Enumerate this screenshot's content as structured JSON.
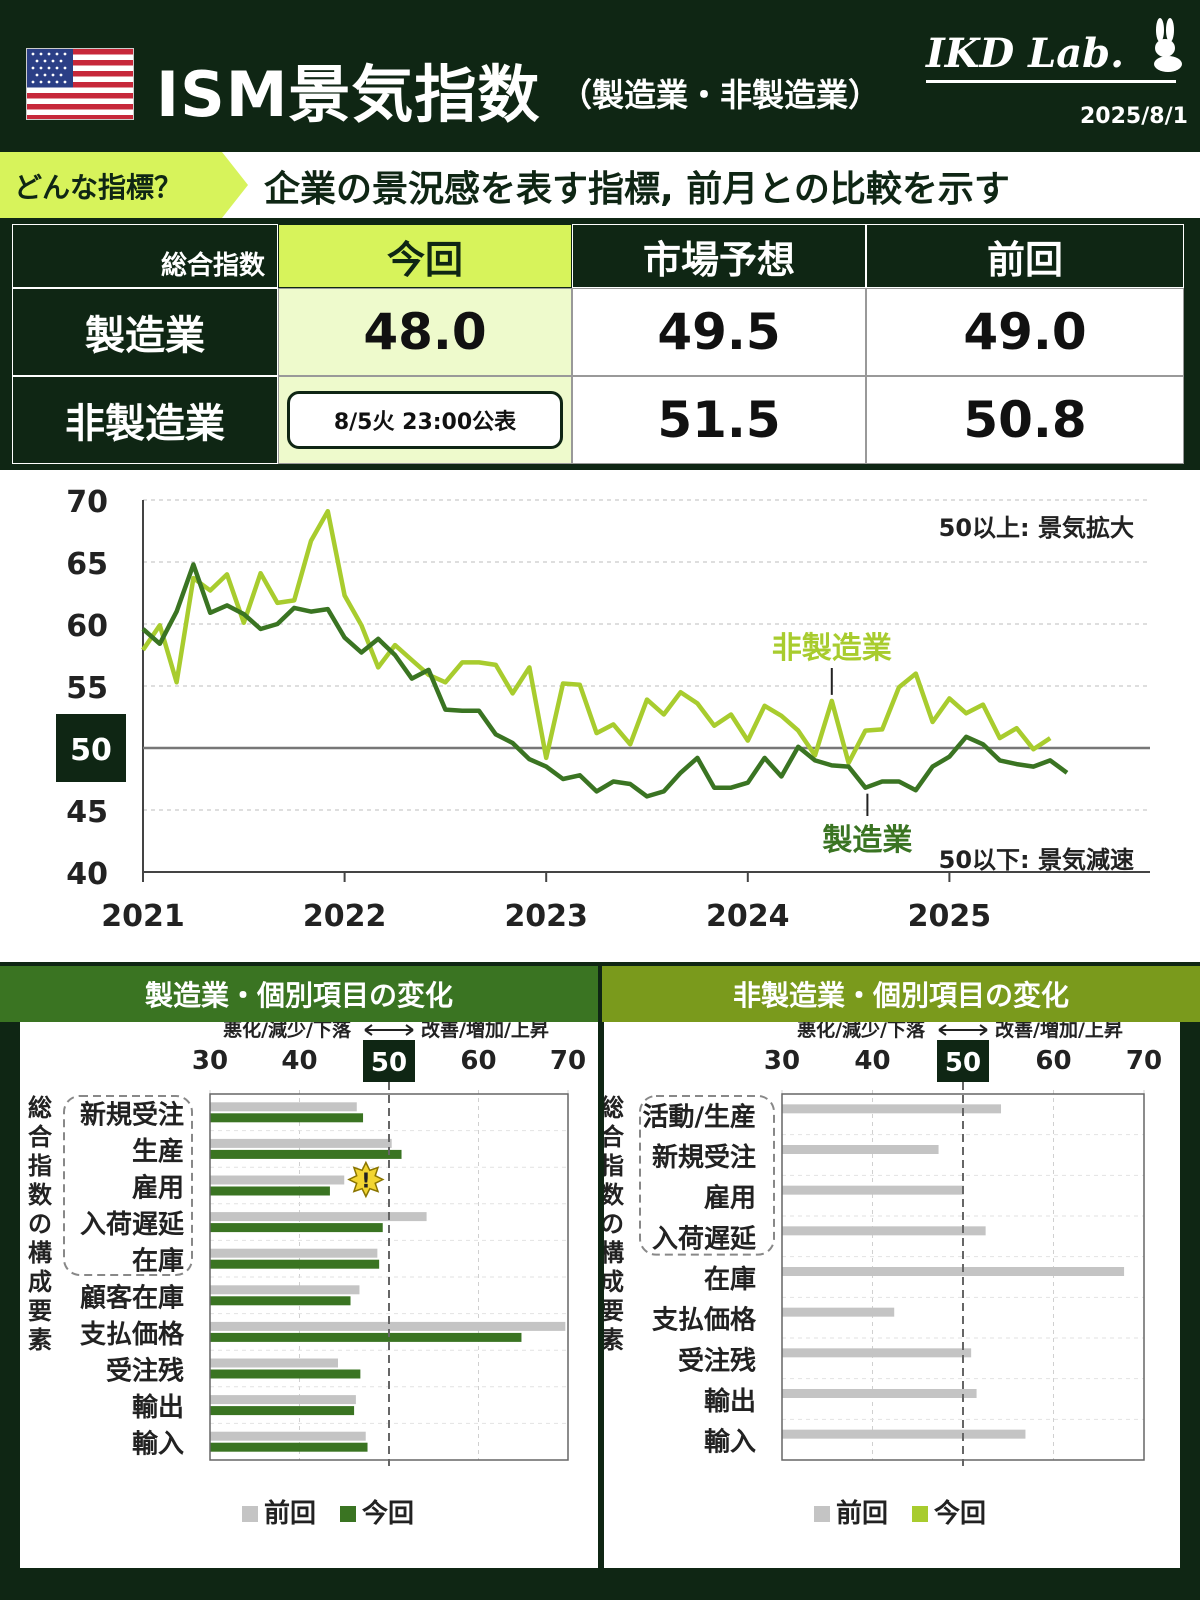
{
  "header": {
    "title": "ISM景気指数",
    "subtitle": "（製造業・非製造業）",
    "brand": "IKD Lab.",
    "date": "2025/8/1"
  },
  "description": {
    "tag": "どんな指標？",
    "text": "企業の景況感を表す指標, 前月との比較を示す"
  },
  "summary_table": {
    "corner": "総合指数",
    "columns": [
      "今回",
      "市場予想",
      "前回"
    ],
    "rows": [
      {
        "label": "製造業",
        "now": "48.0",
        "forecast": "49.5",
        "previous": "49.0"
      },
      {
        "label": "非製造業",
        "now": "8/5火 23:00公表",
        "forecast": "51.5",
        "previous": "50.8"
      }
    ]
  },
  "colors": {
    "dark_green": "#0f2614",
    "manufacturing": "#3a7422",
    "services": "#a8cc2e",
    "accent": "#d7f35b",
    "previous_bar": "#c4c4c4"
  },
  "chart_data": [
    {
      "type": "line",
      "x_labels": [
        "2021",
        "2022",
        "2023",
        "2024",
        "2025"
      ],
      "ylim": [
        40,
        70
      ],
      "yticks": [
        40,
        45,
        50,
        55,
        60,
        65,
        70
      ],
      "reference_line": 50,
      "annotations": {
        "above": "50以上: 景気拡大",
        "below": "50以下: 景気減速"
      },
      "series": [
        {
          "name": "製造業",
          "values": [
            59.6,
            58.4,
            61.0,
            64.8,
            60.9,
            61.5,
            60.8,
            59.6,
            60.0,
            61.3,
            61.0,
            61.2,
            58.9,
            57.7,
            58.8,
            57.5,
            55.6,
            56.3,
            53.1,
            53.0,
            53.0,
            51.1,
            50.4,
            49.1,
            48.5,
            47.5,
            47.8,
            46.5,
            47.3,
            47.1,
            46.1,
            46.5,
            48.0,
            49.2,
            46.8,
            46.8,
            47.2,
            49.2,
            47.7,
            50.1,
            49.0,
            48.6,
            48.5,
            46.8,
            47.3,
            47.3,
            46.6,
            48.5,
            49.3,
            50.9,
            50.3,
            49.0,
            48.7,
            48.5,
            49.0,
            48.0
          ]
        },
        {
          "name": "非製造業",
          "values": [
            57.9,
            59.9,
            55.3,
            63.7,
            62.7,
            64.0,
            60.1,
            64.1,
            61.7,
            61.9,
            66.7,
            69.1,
            62.3,
            59.9,
            56.5,
            58.3,
            57.1,
            55.9,
            55.3,
            56.9,
            56.9,
            56.7,
            54.4,
            56.5,
            49.2,
            55.2,
            55.1,
            51.2,
            51.9,
            50.3,
            53.9,
            52.7,
            54.5,
            53.6,
            51.8,
            52.7,
            50.6,
            53.4,
            52.6,
            51.4,
            49.4,
            53.8,
            48.8,
            51.4,
            51.5,
            54.9,
            56.0,
            52.1,
            54.0,
            52.8,
            53.5,
            50.8,
            51.6,
            49.9,
            50.8
          ]
        }
      ]
    },
    {
      "type": "bar",
      "title": "製造業・個別項目の変化",
      "axis_left": "悪化/減少/下落",
      "axis_right": "改善/増加/上昇",
      "xticks": [
        30,
        40,
        50,
        60,
        70
      ],
      "xlim": [
        30,
        70
      ],
      "reference_line": 50,
      "side_label": "総合指数の構成要素",
      "categories": [
        "新規受注",
        "生産",
        "雇用",
        "入荷遅延",
        "在庫",
        "顧客在庫",
        "支払価格",
        "受注残",
        "輸出",
        "輸入"
      ],
      "series": [
        {
          "name": "前回",
          "values": [
            46.4,
            50.3,
            45.0,
            54.2,
            48.7,
            46.7,
            69.7,
            44.3,
            46.3,
            47.4
          ]
        },
        {
          "name": "今回",
          "values": [
            47.1,
            51.4,
            43.4,
            49.3,
            48.9,
            45.7,
            64.8,
            46.8,
            46.1,
            47.6
          ]
        }
      ],
      "legend": [
        "前回",
        "今回"
      ],
      "alert_category": "雇用"
    },
    {
      "type": "bar",
      "title": "非製造業・個別項目の変化",
      "axis_left": "悪化/減少/下落",
      "axis_right": "改善/増加/上昇",
      "xticks": [
        30,
        40,
        50,
        60,
        70
      ],
      "xlim": [
        30,
        70
      ],
      "reference_line": 50,
      "side_label": "総合指数の構成要素",
      "categories": [
        "活動/生産",
        "新規受注",
        "雇用",
        "入荷遅延",
        "在庫",
        "支払価格",
        "受注残",
        "輸出",
        "輸入"
      ],
      "series": [
        {
          "name": "前回",
          "values": [
            54.2,
            47.3,
            50.1,
            52.5,
            67.8,
            42.4,
            50.9,
            51.5,
            56.9
          ]
        }
      ],
      "legend": [
        "前回",
        "今回"
      ]
    }
  ]
}
